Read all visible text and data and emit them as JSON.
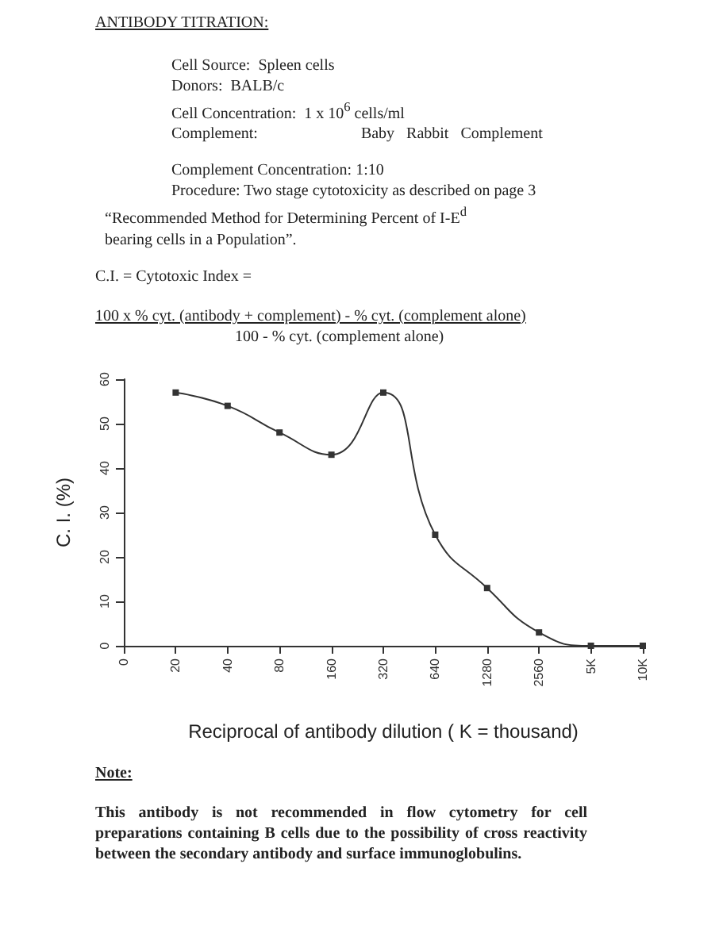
{
  "chart_data": {
    "type": "line",
    "title": "ANTIBODY TITRATION:",
    "annotations": [
      "Cell Source:  Spleen cells",
      "Donors:  BALB/c",
      "Cell Concentration:  1 x 10$^{6}$ cells/ml",
      "Complement:                          Baby   Rabbit   Complement",
      "Complement Concentration:  1:10",
      "Procedure:  Two stage cytotoxicity as described on page 3",
      "“Recommended Method for Determining Percent of I-E$^{d}$ bearing cells in a Population”.",
      "C.I. = Cytotoxic Index =",
      "100 x % cyt.  (antibody + complement) - % cyt.  (complement alone)",
      "100 - % cyt.  (complement alone)",
      "Note:",
      "This antibody is not recommended in flow cytometry for cell preparations containing B cells due to the possibility of cross reactivity between the secondary antibody and surface immunoglobulins."
    ],
    "xlabel": "Reciprocal of antibody dilution ( K = thousand)",
    "ylabel": "C. I. (%)",
    "categories": [
      "0",
      "20",
      "40",
      "80",
      "160",
      "320",
      "640",
      "1280",
      "2560",
      "5K",
      "10K"
    ],
    "series": [
      {
        "color": "#333333",
        "values": [
          null,
          57,
          54,
          48,
          43,
          57,
          25,
          13,
          3,
          0,
          0
        ]
      }
    ],
    "ylim": [
      0,
      60
    ],
    "yticks": [
      0,
      10,
      20,
      30,
      40,
      50,
      60
    ],
    "grid": false,
    "marker": "square",
    "line_style": "solid"
  }
}
